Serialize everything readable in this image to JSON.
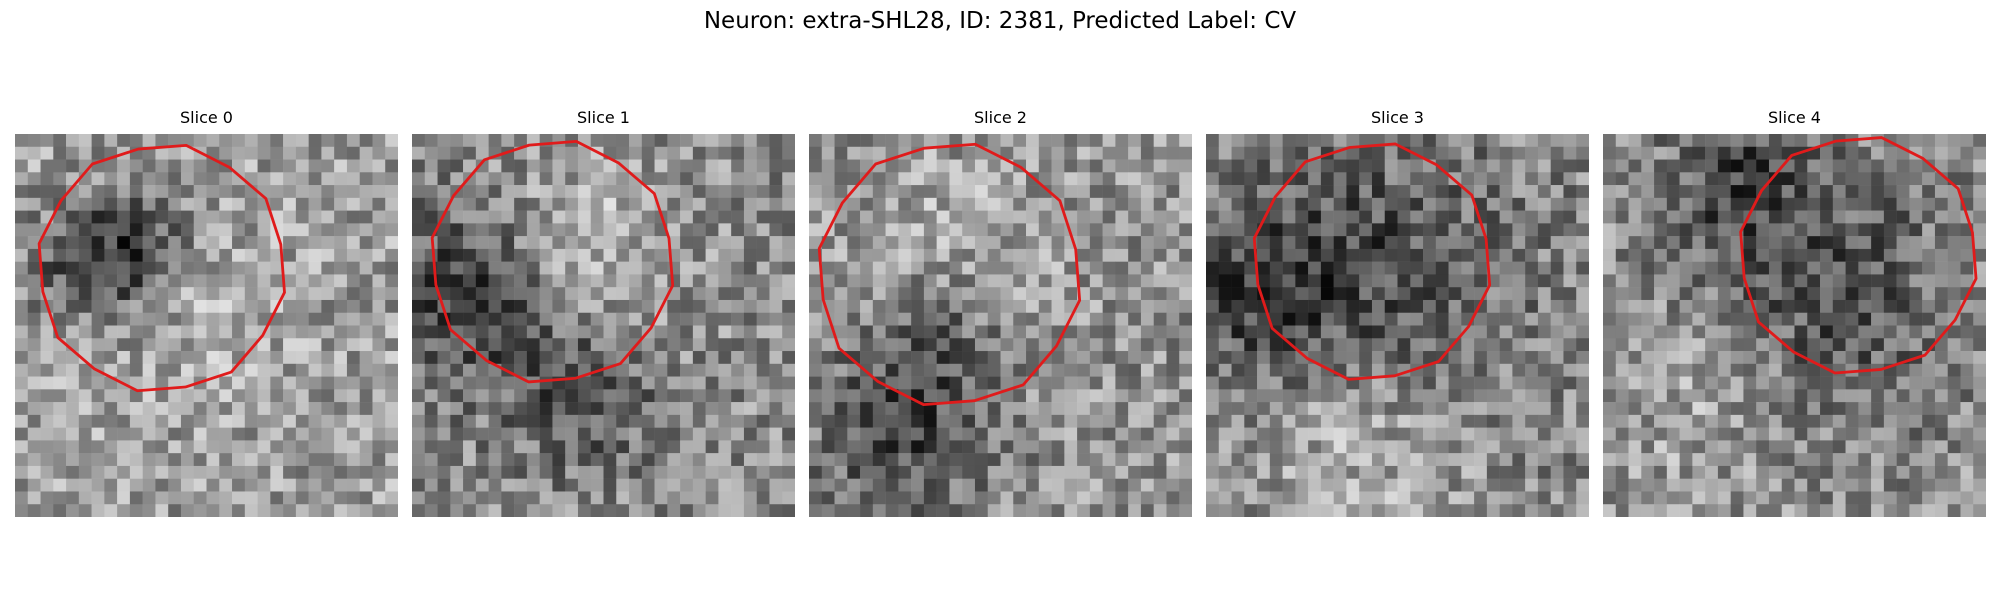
{
  "figure": {
    "title": "Neuron: extra-SHL28, ID: 2381, Predicted Label: CV"
  },
  "panels": [
    {
      "title": "Slice 0"
    },
    {
      "title": "Slice 1"
    },
    {
      "title": "Slice 2"
    },
    {
      "title": "Slice 3"
    },
    {
      "title": "Slice 4"
    }
  ],
  "colors": {
    "contour": "#e01b1b"
  }
}
